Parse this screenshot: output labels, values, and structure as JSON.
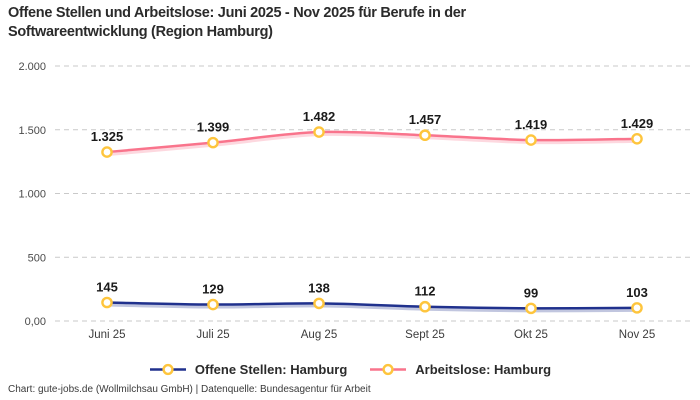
{
  "chart_data": {
    "type": "line",
    "title": "Offene Stellen und Arbeitslose: Juni 2025 - Nov 2025 für Berufe in der Softwareentwicklung (Region Hamburg)",
    "categories": [
      "Juni 25",
      "Juli 25",
      "Aug 25",
      "Sept 25",
      "Okt 25",
      "Nov 25"
    ],
    "series": [
      {
        "name": "Offene Stellen: Hamburg",
        "values": [
          145,
          129,
          138,
          112,
          99,
          103
        ],
        "labels": [
          "145",
          "129",
          "138",
          "112",
          "99",
          "103"
        ],
        "color": "#20318d"
      },
      {
        "name": "Arbeitslose: Hamburg",
        "values": [
          1325,
          1399,
          1482,
          1457,
          1419,
          1429
        ],
        "labels": [
          "1.325",
          "1.399",
          "1.482",
          "1.457",
          "1.419",
          "1.429"
        ],
        "color": "#f9748c"
      }
    ],
    "marker_color": "#fec53d",
    "marker_fill": "#ffffff",
    "gridline_color": "#c9c9c9",
    "ylim": [
      0,
      2000
    ],
    "yticks": [
      {
        "value": 0,
        "label": "0,00"
      },
      {
        "value": 500,
        "label": "500"
      },
      {
        "value": 1000,
        "label": "1.000"
      },
      {
        "value": 1500,
        "label": "1.500"
      },
      {
        "value": 2000,
        "label": "2.000"
      }
    ],
    "grid": "horizontal-dashed",
    "legend_position": "bottom"
  },
  "footer": {
    "text": "Chart: gute-jobs.de (Wollmilchsau GmbH) | Datenquelle: Bundesagentur für Arbeit"
  }
}
